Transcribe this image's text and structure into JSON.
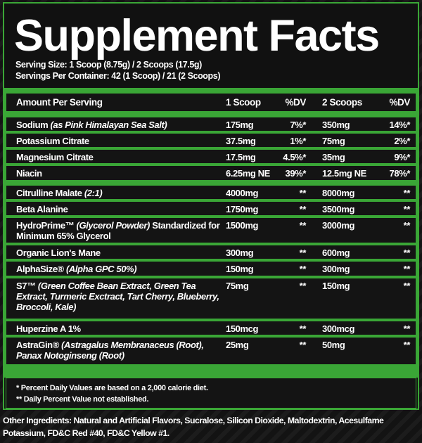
{
  "title": "Supplement Facts",
  "serving_size": "Serving Size: 1 Scoop (8.75g) / 2 Scoops (17.5g)",
  "servings_per_container": "Servings Per Container: 42 (1 Scoop) / 21 (2 Scoops)",
  "header": [
    "Amount Per Serving",
    "1 Scoop",
    "%DV",
    "2 Scoops",
    "%DV"
  ],
  "rows": [
    {
      "name": "Sodium",
      "note": "(as Pink Himalayan Sea Salt)",
      "a": "175mg",
      "dva": "7%*",
      "b": "350mg",
      "dvb": "14%*"
    },
    {
      "name": "Potassium Citrate",
      "note": "",
      "a": "37.5mg",
      "dva": "1%*",
      "b": "75mg",
      "dvb": "2%*"
    },
    {
      "name": "Magnesium Citrate",
      "note": "",
      "a": "17.5mg",
      "dva": "4.5%*",
      "b": "35mg",
      "dvb": "9%*"
    },
    {
      "name": "Niacin",
      "note": "",
      "a": "6.25mg NE",
      "dva": "39%*",
      "b": "12.5mg NE",
      "dvb": "78%*"
    },
    {
      "name": "Citrulline Malate",
      "note": "(2:1)",
      "a": "4000mg",
      "dva": "**",
      "b": "8000mg",
      "dvb": "**"
    },
    {
      "name": "Beta Alanine",
      "note": "",
      "a": "1750mg",
      "dva": "**",
      "b": "3500mg",
      "dvb": "**"
    },
    {
      "name": "HydroPrime™",
      "note": "(Glycerol Powder)",
      "tail": "Standardized for Minimum 65% Glycerol",
      "a": "1500mg",
      "dva": "**",
      "b": "3000mg",
      "dvb": "**"
    },
    {
      "name": "Organic Lion's Mane",
      "note": "",
      "a": "300mg",
      "dva": "**",
      "b": "600mg",
      "dvb": "**"
    },
    {
      "name": "AlphaSize®",
      "note": "(Alpha GPC 50%)",
      "a": "150mg",
      "dva": "**",
      "b": "300mg",
      "dvb": "**"
    },
    {
      "name": "S7™",
      "note": "(Green Coffee Bean Extract, Green Tea Extract, Turmeric Exctract, Tart Cherry, Blueberry, Broccoli, Kale)",
      "a": "75mg",
      "dva": "**",
      "b": "150mg",
      "dvb": "**"
    },
    {
      "name": "Huperzine A 1%",
      "note": "",
      "a": "150mcg",
      "dva": "**",
      "b": "300mcg",
      "dvb": "**"
    },
    {
      "name": "AstraGin®",
      "note": "(Astragalus Membranaceus (Root), Panax Notoginseng (Root)",
      "a": "25mg",
      "dva": "**",
      "b": "50mg",
      "dvb": "**"
    }
  ],
  "footnotes": [
    "* Percent Daily Values are based on a 2,000 calorie diet.",
    "** Daily Percent Value not established."
  ],
  "other_ingredients": "Other Ingredients: Natural and Artificial Flavors, Sucralose, Silicon Dioxide, Maltodextrin, Acesulfame Potassium, FD&C Red #40, FD&C Yellow #1.",
  "colors": {
    "accent": "#3aa636",
    "background": "#111111",
    "text": "#ffffff"
  }
}
